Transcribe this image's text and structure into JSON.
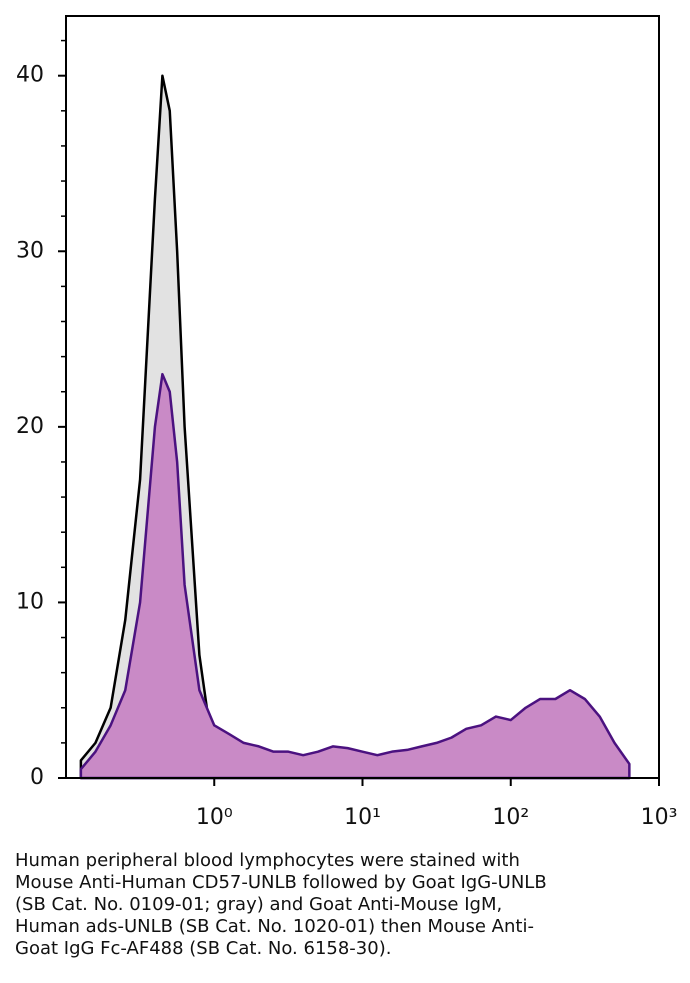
{
  "chart_data": {
    "type": "area",
    "x": [
      0.126,
      0.158,
      0.2,
      0.251,
      0.316,
      0.398,
      0.447,
      0.501,
      0.562,
      0.631,
      0.794,
      1,
      1.26,
      1.58,
      2,
      2.51,
      3.16,
      3.98,
      5.01,
      6.31,
      7.94,
      10,
      12.6,
      15.8,
      20,
      25.1,
      31.6,
      39.8,
      50.1,
      63.1,
      79.4,
      100,
      126,
      158,
      200,
      251,
      316,
      398,
      501,
      631
    ],
    "series": [
      {
        "color": "#e2e2e2",
        "line_color": "#000000",
        "values": [
          1,
          2,
          4,
          9,
          17,
          33,
          40,
          38,
          30,
          20,
          7,
          1,
          0.2,
          0,
          0,
          0,
          0,
          0,
          0,
          0,
          0,
          0,
          0,
          0,
          0,
          0,
          0,
          0,
          0,
          0,
          0,
          0,
          0,
          0,
          0,
          0,
          0,
          0,
          0,
          0
        ]
      },
      {
        "color": "#c98ac6",
        "line_color": "#4b1280",
        "values": [
          0.5,
          1.5,
          3,
          5,
          10,
          20,
          23,
          22,
          18,
          11,
          5,
          3,
          2.5,
          2,
          1.8,
          1.5,
          1.5,
          1.3,
          1.5,
          1.8,
          1.7,
          1.5,
          1.3,
          1.5,
          1.6,
          1.8,
          2,
          2.3,
          2.8,
          3,
          3.5,
          3.3,
          4,
          4.5,
          4.5,
          5,
          4.5,
          3.5,
          2,
          0.8
        ]
      }
    ],
    "xlog": true,
    "xlim": [
      0.1,
      1000
    ],
    "xticks": [
      {
        "value": 1,
        "label": "10⁰"
      },
      {
        "value": 10,
        "label": "10¹"
      },
      {
        "value": 100,
        "label": "10²"
      },
      {
        "value": 1000,
        "label": "10³"
      }
    ],
    "ylim": [
      0,
      43.4
    ],
    "yticks": [
      0,
      10,
      20,
      30,
      40
    ],
    "yminorticks": [
      2,
      4,
      6,
      8,
      12,
      14,
      16,
      18,
      22,
      24,
      26,
      28,
      32,
      34,
      36,
      38,
      42
    ],
    "caption": [
      "Human peripheral blood lymphocytes were stained with",
      "Mouse Anti-Human CD57-UNLB followed by Goat IgG-UNLB",
      "(SB Cat. No. 0109-01; gray) and Goat Anti-Mouse IgM,",
      "Human ads-UNLB (SB Cat. No. 1020-01) then Mouse Anti-",
      "Goat IgG Fc-AF488 (SB Cat. No. 6158-30)."
    ]
  }
}
